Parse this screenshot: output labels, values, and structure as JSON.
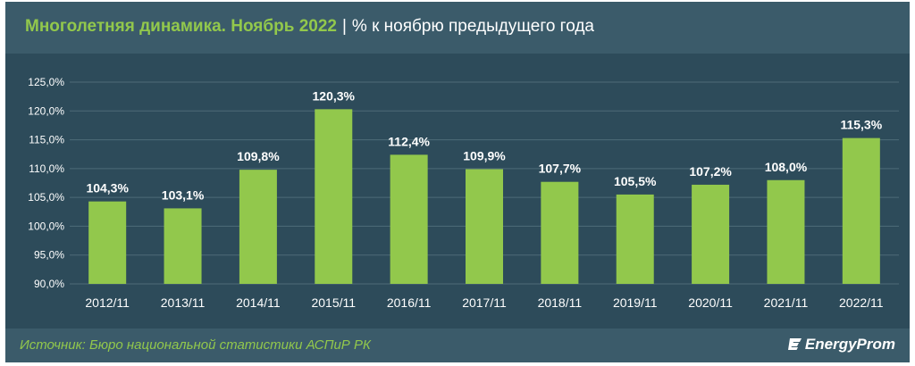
{
  "header": {
    "title": "Многолетняя динамика. Ноябрь 2022",
    "separator": "|",
    "subtitle": "% к ноябрю предыдущего года"
  },
  "footer": {
    "source": "Источник: Бюро национальной статистики АСПиР РК",
    "logo_text": "EnergyProm",
    "logo_icon": "energyprom-logo-icon"
  },
  "colors": {
    "background": "#2d4b5a",
    "header_bg": "#3b5b6a",
    "bar": "#92c84c",
    "accent_text": "#92c84c",
    "text": "#ffffff",
    "grid": "#4e6b78"
  },
  "chart_data": {
    "type": "bar",
    "title": "Многолетняя динамика. Ноябрь 2022",
    "subtitle": "% к ноябрю предыдущего года",
    "categories": [
      "2012/11",
      "2013/11",
      "2014/11",
      "2015/11",
      "2016/11",
      "2017/11",
      "2018/11",
      "2019/11",
      "2020/11",
      "2021/11",
      "2022/11"
    ],
    "values": [
      104.3,
      103.1,
      109.8,
      120.3,
      112.4,
      109.9,
      107.7,
      105.5,
      107.2,
      108.0,
      115.3
    ],
    "value_labels": [
      "104,3%",
      "103,1%",
      "109,8%",
      "120,3%",
      "112,4%",
      "109,9%",
      "107,7%",
      "105,5%",
      "107,2%",
      "108,0%",
      "115,3%"
    ],
    "yticks": [
      90,
      95,
      100,
      105,
      110,
      115,
      120,
      125
    ],
    "ytick_labels": [
      "90,0%",
      "95,0%",
      "100,0%",
      "105,0%",
      "110,0%",
      "115,0%",
      "120,0%",
      "125,0%"
    ],
    "ylim": [
      90,
      125
    ],
    "grid": true,
    "legend": "none"
  }
}
